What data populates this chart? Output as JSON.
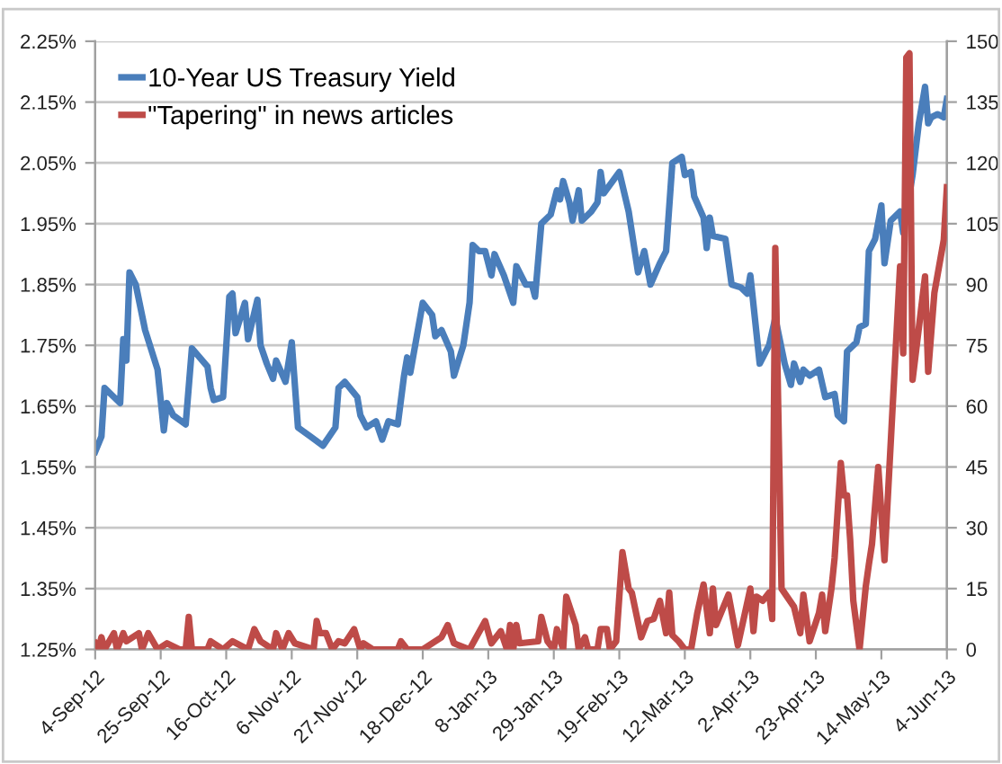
{
  "chart_data": {
    "type": "line",
    "xlim": [
      "2012-09-04",
      "2013-06-04"
    ],
    "xticks": [
      {
        "value": "2012-09-04",
        "label": "4-Sep-12"
      },
      {
        "value": "2012-09-25",
        "label": "25-Sep-12"
      },
      {
        "value": "2012-10-16",
        "label": "16-Oct-12"
      },
      {
        "value": "2012-11-06",
        "label": "6-Nov-12"
      },
      {
        "value": "2012-11-27",
        "label": "27-Nov-12"
      },
      {
        "value": "2012-12-18",
        "label": "18-Dec-12"
      },
      {
        "value": "2013-01-08",
        "label": "8-Jan-13"
      },
      {
        "value": "2013-01-29",
        "label": "29-Jan-13"
      },
      {
        "value": "2013-02-19",
        "label": "19-Feb-13"
      },
      {
        "value": "2013-03-12",
        "label": "12-Mar-13"
      },
      {
        "value": "2013-04-02",
        "label": "2-Apr-13"
      },
      {
        "value": "2013-04-23",
        "label": "23-Apr-13"
      },
      {
        "value": "2013-05-14",
        "label": "14-May-13"
      },
      {
        "value": "2013-06-04",
        "label": "4-Jun-13"
      }
    ],
    "ylim": [
      1.25,
      2.25
    ],
    "yticks": [
      {
        "value": 1.25,
        "label": "1.25%"
      },
      {
        "value": 1.35,
        "label": "1.35%"
      },
      {
        "value": 1.45,
        "label": "1.45%"
      },
      {
        "value": 1.55,
        "label": "1.55%"
      },
      {
        "value": 1.65,
        "label": "1.65%"
      },
      {
        "value": 1.75,
        "label": "1.75%"
      },
      {
        "value": 1.85,
        "label": "1.85%"
      },
      {
        "value": 1.95,
        "label": "1.95%"
      },
      {
        "value": 2.05,
        "label": "2.05%"
      },
      {
        "value": 2.15,
        "label": "2.15%"
      },
      {
        "value": 2.25,
        "label": "2.25%"
      }
    ],
    "y2lim": [
      0,
      150
    ],
    "y2ticks": [
      0,
      15,
      30,
      45,
      60,
      75,
      90,
      105,
      120,
      135,
      150
    ],
    "grid": "y",
    "legend": "top left",
    "marker": "none",
    "line_style": "solid",
    "series": [
      {
        "name": "10-Year US Treasury Yield",
        "color": "#4a7ebb",
        "x": [
          "2012-09-04",
          "2012-09-06",
          "2012-09-07",
          "2012-09-10",
          "2012-09-12",
          "2012-09-13",
          "2012-09-14",
          "2012-09-15",
          "2012-09-17",
          "2012-09-20",
          "2012-09-24",
          "2012-09-26",
          "2012-09-27",
          "2012-09-29",
          "2012-10-03",
          "2012-10-05",
          "2012-10-10",
          "2012-10-11",
          "2012-10-12",
          "2012-10-15",
          "2012-10-17",
          "2012-10-18",
          "2012-10-19",
          "2012-10-22",
          "2012-10-23",
          "2012-10-26",
          "2012-10-27",
          "2012-10-29",
          "2012-10-31",
          "2012-11-01",
          "2012-11-04",
          "2012-11-06",
          "2012-11-08",
          "2012-11-12",
          "2012-11-16",
          "2012-11-20",
          "2012-11-21",
          "2012-11-23",
          "2012-11-27",
          "2012-11-28",
          "2012-11-30",
          "2012-12-03",
          "2012-12-05",
          "2012-12-07",
          "2012-12-10",
          "2012-12-12",
          "2012-12-13",
          "2012-12-14",
          "2012-12-18",
          "2012-12-21",
          "2012-12-22",
          "2012-12-24",
          "2012-12-27",
          "2012-12-28",
          "2012-12-31",
          "2013-01-02",
          "2013-01-03",
          "2013-01-05",
          "2013-01-07",
          "2013-01-09",
          "2013-01-10",
          "2013-01-13",
          "2013-01-16",
          "2013-01-17",
          "2013-01-20",
          "2013-01-22",
          "2013-01-23",
          "2013-01-25",
          "2013-01-28",
          "2013-01-30",
          "2013-01-31",
          "2013-02-01",
          "2013-02-03",
          "2013-02-04",
          "2013-02-06",
          "2013-02-07",
          "2013-02-10",
          "2013-02-12",
          "2013-02-13",
          "2013-02-14",
          "2013-02-19",
          "2013-02-22",
          "2013-02-25",
          "2013-02-27",
          "2013-03-01",
          "2013-03-04",
          "2013-03-06",
          "2013-03-08",
          "2013-03-11",
          "2013-03-12",
          "2013-03-14",
          "2013-03-15",
          "2013-03-18",
          "2013-03-19",
          "2013-03-20",
          "2013-03-21",
          "2013-03-25",
          "2013-03-27",
          "2013-03-30",
          "2013-04-01",
          "2013-04-02",
          "2013-04-05",
          "2013-04-08",
          "2013-04-10",
          "2013-04-13",
          "2013-04-15",
          "2013-04-16",
          "2013-04-18",
          "2013-04-19",
          "2013-04-21",
          "2013-04-24",
          "2013-04-26",
          "2013-04-29",
          "2013-04-30",
          "2013-05-02",
          "2013-05-03",
          "2013-05-06",
          "2013-05-07",
          "2013-05-09",
          "2013-05-10",
          "2013-05-12",
          "2013-05-14",
          "2013-05-15",
          "2013-05-17",
          "2013-05-20",
          "2013-05-21",
          "2013-05-24",
          "2013-05-26",
          "2013-05-28",
          "2013-05-29",
          "2013-05-30",
          "2013-06-01",
          "2013-06-03",
          "2013-06-04"
        ],
        "values": [
          1.575,
          1.6,
          1.68,
          1.665,
          1.655,
          1.76,
          1.725,
          1.87,
          1.85,
          1.775,
          1.71,
          1.61,
          1.655,
          1.635,
          1.62,
          1.745,
          1.715,
          1.68,
          1.66,
          1.665,
          1.83,
          1.835,
          1.77,
          1.82,
          1.76,
          1.825,
          1.75,
          1.72,
          1.695,
          1.725,
          1.69,
          1.755,
          1.615,
          1.6,
          1.585,
          1.615,
          1.68,
          1.69,
          1.665,
          1.635,
          1.615,
          1.625,
          1.595,
          1.625,
          1.62,
          1.7,
          1.73,
          1.705,
          1.82,
          1.8,
          1.765,
          1.775,
          1.74,
          1.7,
          1.75,
          1.82,
          1.915,
          1.905,
          1.905,
          1.865,
          1.9,
          1.865,
          1.82,
          1.88,
          1.85,
          1.85,
          1.83,
          1.95,
          1.965,
          2.005,
          1.99,
          2.02,
          1.985,
          1.955,
          2.005,
          1.955,
          1.97,
          1.985,
          2.035,
          2.0,
          2.035,
          1.97,
          1.87,
          1.905,
          1.85,
          1.885,
          1.905,
          2.05,
          2.06,
          2.03,
          2.035,
          1.995,
          1.96,
          1.91,
          1.96,
          1.93,
          1.925,
          1.85,
          1.845,
          1.835,
          1.865,
          1.72,
          1.75,
          1.795,
          1.72,
          1.685,
          1.72,
          1.69,
          1.71,
          1.7,
          1.71,
          1.665,
          1.67,
          1.635,
          1.625,
          1.74,
          1.755,
          1.78,
          1.785,
          1.905,
          1.925,
          1.98,
          1.885,
          1.955,
          1.97,
          1.935,
          2.03,
          2.115,
          2.175,
          2.115,
          2.125,
          2.13,
          2.125,
          2.155
        ]
      },
      {
        "name": "\"Tapering\" in news articles",
        "color": "#be4b48",
        "axis": "y2",
        "x": [
          "2012-09-04",
          "2012-09-05",
          "2012-09-06",
          "2012-09-07",
          "2012-09-10",
          "2012-09-11",
          "2012-09-13",
          "2012-09-14",
          "2012-09-18",
          "2012-09-19",
          "2012-09-21",
          "2012-09-24",
          "2012-09-27",
          "2012-10-01",
          "2012-10-03",
          "2012-10-04",
          "2012-10-05",
          "2012-10-10",
          "2012-10-11",
          "2012-10-13",
          "2012-10-15",
          "2012-10-18",
          "2012-10-23",
          "2012-10-25",
          "2012-10-27",
          "2012-10-31",
          "2012-11-01",
          "2012-11-03",
          "2012-11-05",
          "2012-11-07",
          "2012-11-13",
          "2012-11-14",
          "2012-11-15",
          "2012-11-17",
          "2012-11-19",
          "2012-11-21",
          "2012-11-23",
          "2012-11-26",
          "2012-11-28",
          "2012-11-29",
          "2012-12-02",
          "2012-12-10",
          "2012-12-11",
          "2012-12-13",
          "2012-12-18",
          "2012-12-24",
          "2012-12-26",
          "2012-12-28",
          "2013-01-02",
          "2013-01-07",
          "2013-01-09",
          "2013-01-12",
          "2013-01-14",
          "2013-01-15",
          "2013-01-16",
          "2013-01-17",
          "2013-01-18",
          "2013-01-24",
          "2013-01-25",
          "2013-01-27",
          "2013-01-29",
          "2013-01-30",
          "2013-02-01",
          "2013-02-02",
          "2013-02-05",
          "2013-02-06",
          "2013-02-08",
          "2013-02-09",
          "2013-02-12",
          "2013-02-13",
          "2013-02-15",
          "2013-02-16",
          "2013-02-18",
          "2013-02-20",
          "2013-02-22",
          "2013-02-23",
          "2013-02-26",
          "2013-02-28",
          "2013-03-02",
          "2013-03-04",
          "2013-03-06",
          "2013-03-07",
          "2013-03-08",
          "2013-03-10",
          "2013-03-12",
          "2013-03-14",
          "2013-03-16",
          "2013-03-18",
          "2013-03-20",
          "2013-03-21",
          "2013-03-22",
          "2013-03-26",
          "2013-03-29",
          "2013-04-02",
          "2013-04-03",
          "2013-04-04",
          "2013-04-06",
          "2013-04-08",
          "2013-04-09",
          "2013-04-10",
          "2013-04-12",
          "2013-04-16",
          "2013-04-18",
          "2013-04-19",
          "2013-04-21",
          "2013-04-24",
          "2013-04-25",
          "2013-04-26",
          "2013-04-28",
          "2013-04-29",
          "2013-05-01",
          "2013-05-02",
          "2013-05-03",
          "2013-05-04",
          "2013-05-05",
          "2013-05-07",
          "2013-05-09",
          "2013-05-10",
          "2013-05-11",
          "2013-05-13",
          "2013-05-15",
          "2013-05-20",
          "2013-05-21",
          "2013-05-22",
          "2013-05-23",
          "2013-05-24",
          "2013-05-28",
          "2013-05-29",
          "2013-05-31",
          "2013-06-03",
          "2013-06-04"
        ],
        "values": [
          1.5,
          0,
          3,
          0,
          4,
          0,
          4,
          2,
          4,
          0,
          4,
          0,
          1.5,
          0,
          0,
          8,
          0,
          0,
          2,
          1,
          0,
          2,
          0,
          5,
          2,
          0,
          4,
          0,
          4,
          1.5,
          0,
          7,
          4,
          4,
          0,
          2,
          1.5,
          5,
          0,
          1.5,
          0,
          0,
          2,
          0,
          0,
          3,
          6,
          1.5,
          0,
          7,
          1.5,
          4.5,
          0,
          6,
          0,
          6,
          1.5,
          2,
          8,
          2,
          0,
          5,
          0,
          13,
          6,
          0,
          3,
          0,
          0,
          5,
          5,
          0,
          2,
          24,
          15,
          14,
          3,
          7,
          7.5,
          12,
          4,
          14,
          3.5,
          2,
          0,
          0,
          9,
          16,
          4,
          15,
          6,
          13.5,
          1,
          15,
          4.5,
          13,
          12,
          14,
          7.5,
          99,
          15,
          10.5,
          4,
          13.5,
          2,
          9,
          13.5,
          4.5,
          15,
          22.5,
          46,
          38,
          38,
          27,
          12,
          0,
          15.5,
          21,
          26,
          45,
          22,
          94.5,
          73,
          146,
          147,
          66.5,
          92,
          68.5,
          88,
          101,
          114
        ]
      }
    ]
  }
}
